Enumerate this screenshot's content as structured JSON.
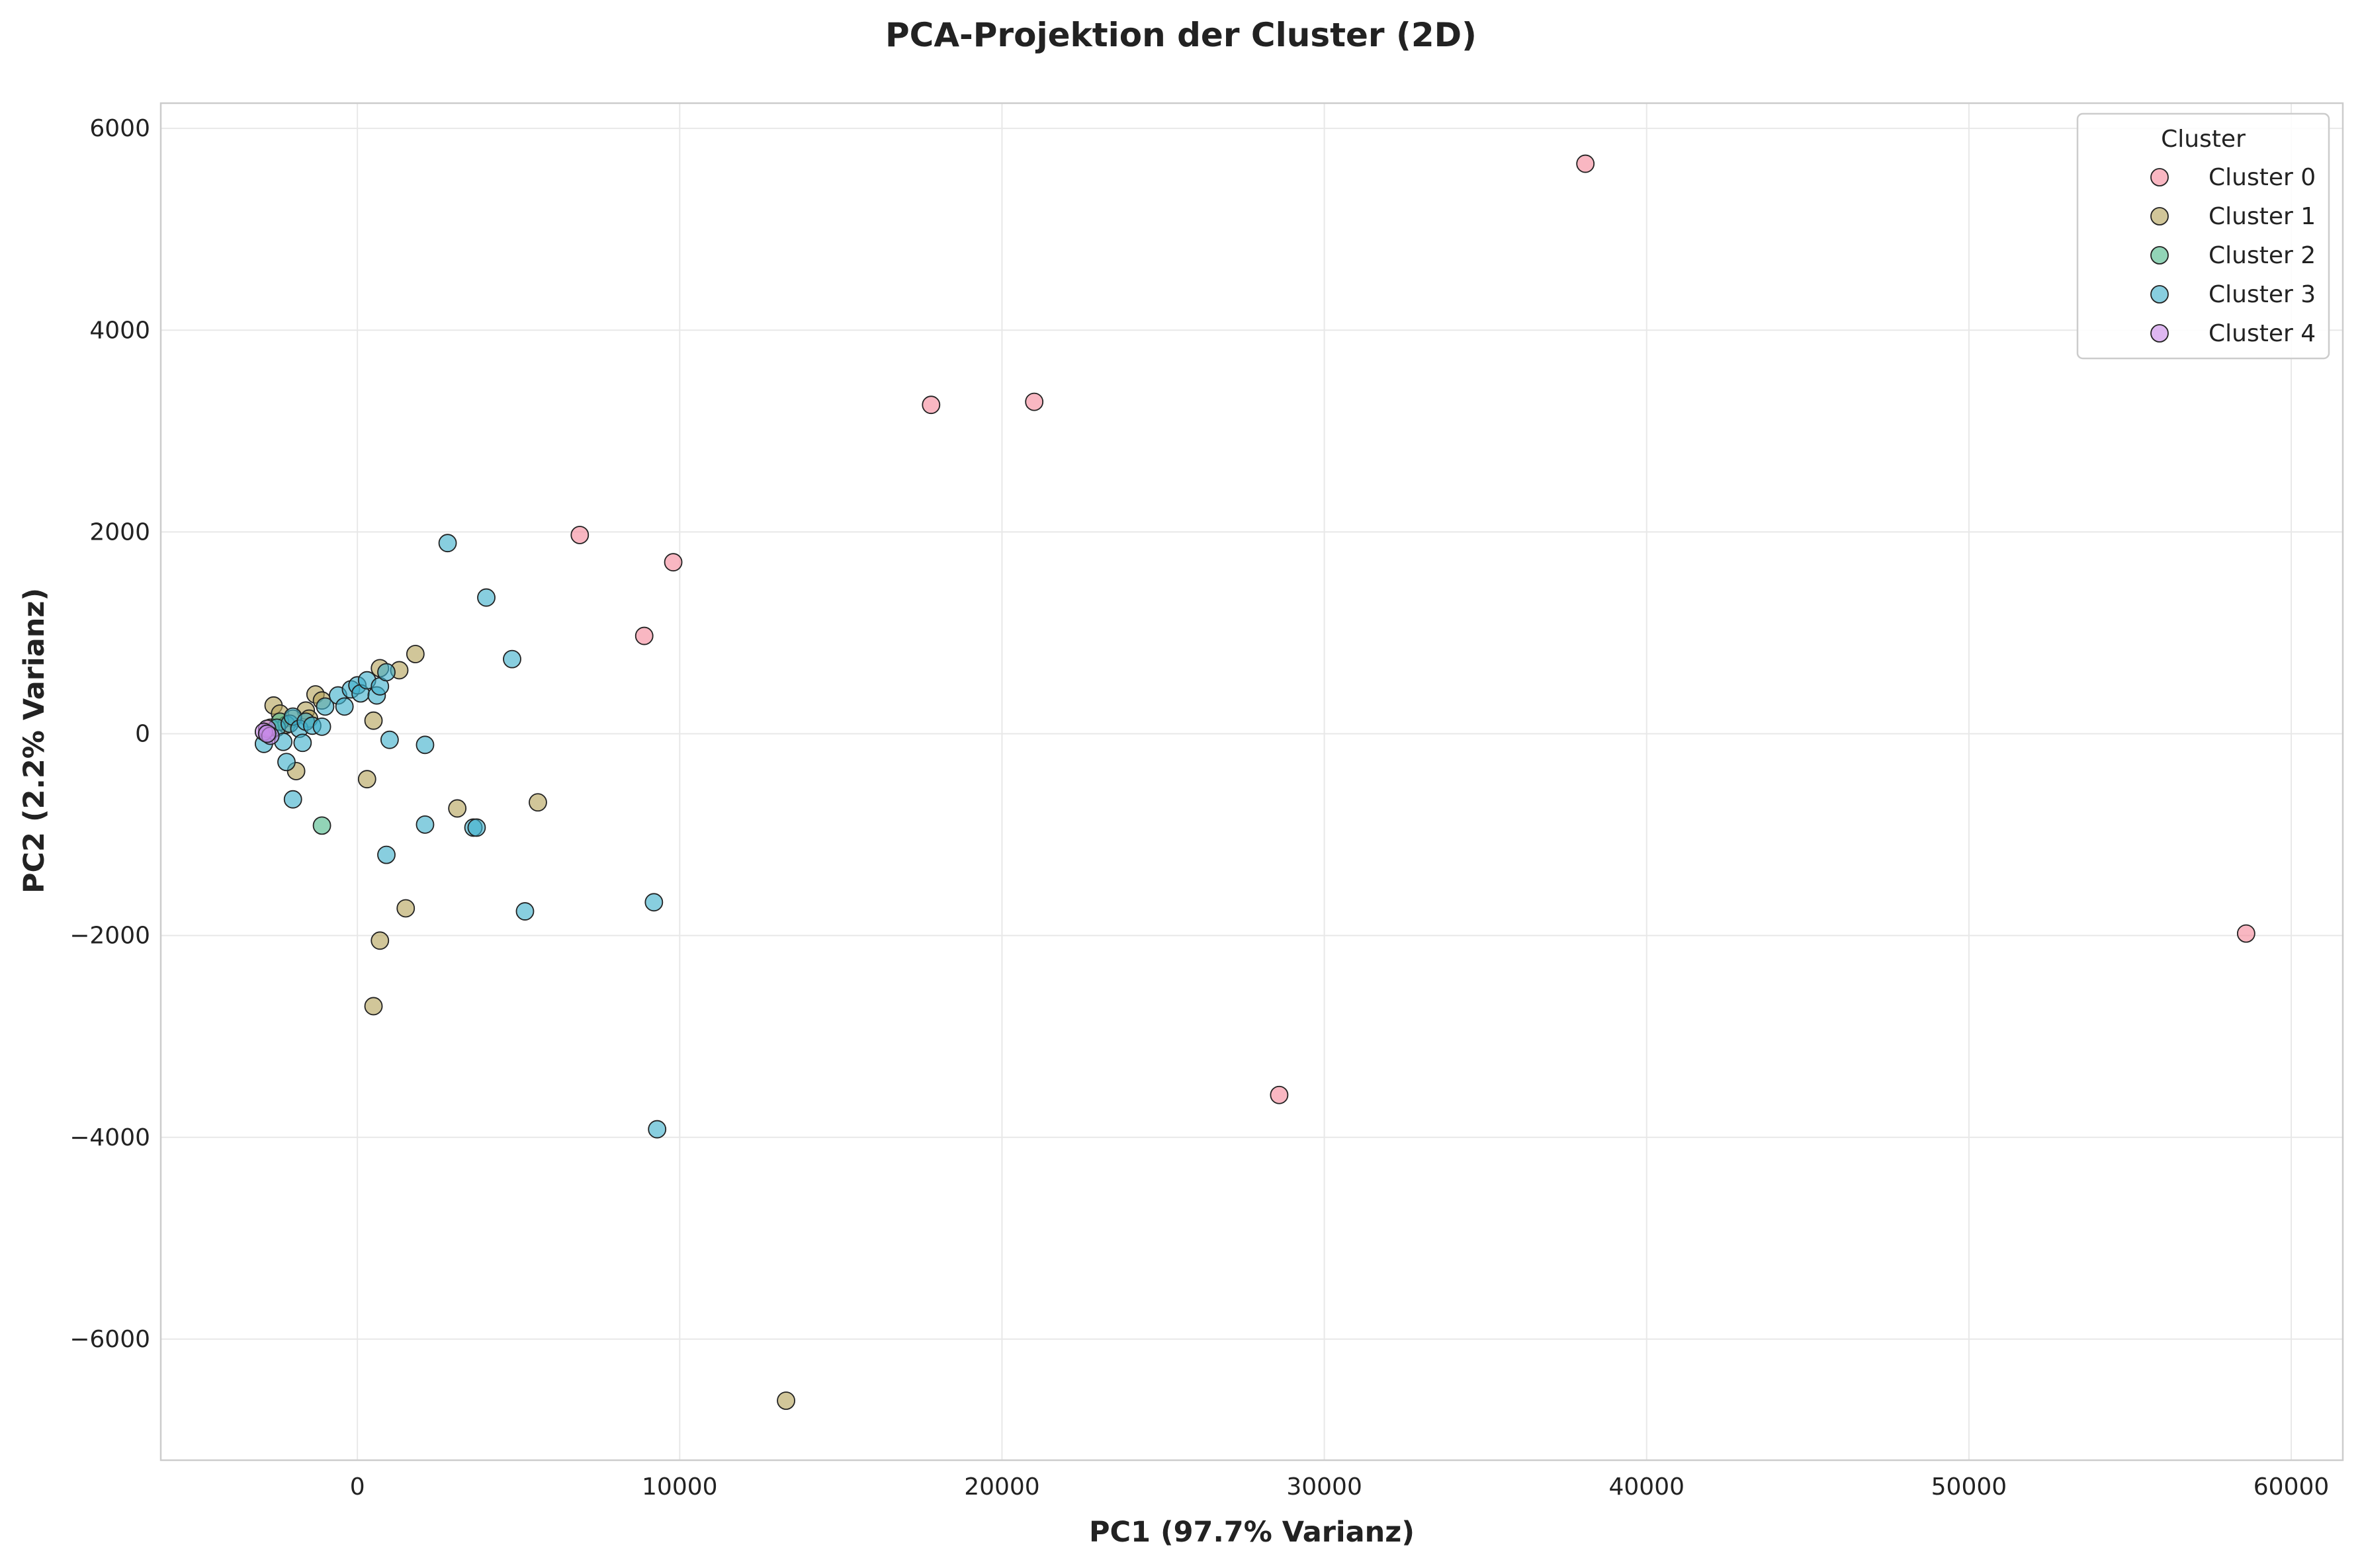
{
  "chart_data": {
    "type": "scatter",
    "title": "PCA-Projektion der Cluster (2D)",
    "xlabel": "PC1 (97.7% Varianz)",
    "ylabel": "PC2 (2.2% Varianz)",
    "xlim": [
      -6100,
      61600
    ],
    "ylim": [
      -7200,
      6250
    ],
    "xticks": [
      0,
      10000,
      20000,
      30000,
      40000,
      50000,
      60000
    ],
    "xtick_labels": [
      "0",
      "10000",
      "20000",
      "30000",
      "40000",
      "50000",
      "60000"
    ],
    "yticks": [
      6000,
      4000,
      2000,
      0,
      -2000,
      -4000,
      -6000
    ],
    "ytick_labels": [
      "6000",
      "4000",
      "2000",
      "0",
      "−2000",
      "−4000",
      "−6000"
    ],
    "grid": true,
    "legend": {
      "title": "Cluster",
      "placement": "top-right"
    },
    "series": [
      {
        "name": "Cluster 0",
        "color": "#f58a9c",
        "points": [
          [
            38100,
            5650
          ],
          [
            17800,
            3260
          ],
          [
            21000,
            3290
          ],
          [
            6900,
            1970
          ],
          [
            9800,
            1700
          ],
          [
            8900,
            970
          ],
          [
            58600,
            -1980
          ],
          [
            28600,
            -3580
          ]
        ]
      },
      {
        "name": "Cluster 1",
        "color": "#b5a35a",
        "points": [
          [
            -2600,
            280
          ],
          [
            -2400,
            200
          ],
          [
            -1300,
            390
          ],
          [
            -1100,
            330
          ],
          [
            -1600,
            230
          ],
          [
            -1500,
            150
          ],
          [
            -2000,
            150
          ],
          [
            -2200,
            90
          ],
          [
            -2700,
            60
          ],
          [
            700,
            650
          ],
          [
            1300,
            630
          ],
          [
            1800,
            790
          ],
          [
            500,
            130
          ],
          [
            300,
            -450
          ],
          [
            3100,
            -740
          ],
          [
            5600,
            -680
          ],
          [
            -1900,
            -370
          ],
          [
            1500,
            -1730
          ],
          [
            700,
            -2050
          ],
          [
            500,
            -2700
          ],
          [
            13300,
            -6610
          ]
        ]
      },
      {
        "name": "Cluster 2",
        "color": "#4fba8a",
        "points": [
          [
            -1100,
            -910
          ],
          [
            -2400,
            120
          ]
        ]
      },
      {
        "name": "Cluster 3",
        "color": "#3fb0cc",
        "points": [
          [
            2800,
            1890
          ],
          [
            4000,
            1350
          ],
          [
            4800,
            740
          ],
          [
            -2800,
            10
          ],
          [
            -2900,
            -100
          ],
          [
            -2500,
            60
          ],
          [
            -2300,
            -80
          ],
          [
            -2100,
            100
          ],
          [
            -2000,
            170
          ],
          [
            -1800,
            50
          ],
          [
            -1600,
            120
          ],
          [
            -1400,
            80
          ],
          [
            -1100,
            70
          ],
          [
            -1000,
            270
          ],
          [
            -600,
            380
          ],
          [
            -400,
            270
          ],
          [
            -200,
            440
          ],
          [
            0,
            480
          ],
          [
            100,
            400
          ],
          [
            300,
            530
          ],
          [
            600,
            380
          ],
          [
            700,
            470
          ],
          [
            900,
            610
          ],
          [
            1000,
            -60
          ],
          [
            2100,
            -110
          ],
          [
            -2200,
            -280
          ],
          [
            -2000,
            -650
          ],
          [
            -1700,
            -90
          ],
          [
            2100,
            -900
          ],
          [
            3600,
            -930
          ],
          [
            3700,
            -930
          ],
          [
            900,
            -1200
          ],
          [
            5200,
            -1760
          ],
          [
            9200,
            -1670
          ],
          [
            9300,
            -3920
          ]
        ]
      },
      {
        "name": "Cluster 4",
        "color": "#c98ae8",
        "points": [
          [
            -2800,
            50
          ],
          [
            -2900,
            20
          ],
          [
            -2700,
            -20
          ],
          [
            -2800,
            0
          ]
        ]
      }
    ]
  }
}
